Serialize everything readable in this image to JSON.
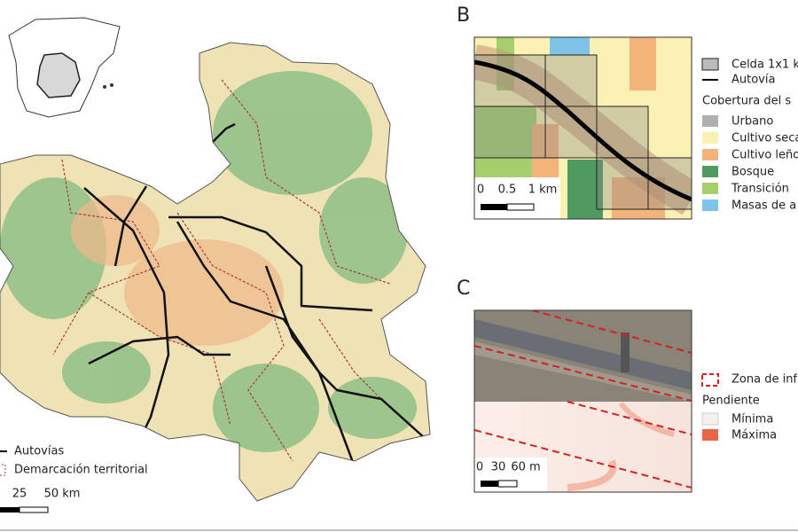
{
  "panel_labels": [
    "B",
    "C"
  ],
  "main_map": {
    "legend": [
      "Autovías",
      "Demarcación territorial"
    ],
    "scale": [
      "25",
      "50 km"
    ]
  },
  "panel_b": {
    "legend": [
      "Celda 1x1 k",
      "Autovía"
    ],
    "heading": "Cobertura del s",
    "classes": [
      "Urbano",
      "Cultivo seca",
      "Cultivo leño",
      "Bosque",
      "Transición",
      "Masas de a"
    ],
    "scale": [
      "0",
      "0.5",
      "1 km"
    ]
  },
  "panel_c": {
    "legend": [
      "Zona de inf"
    ],
    "heading": "Pendiente",
    "classes": [
      "Mínima",
      "Máxima"
    ],
    "scale": [
      "0",
      "30",
      "60 m"
    ]
  }
}
